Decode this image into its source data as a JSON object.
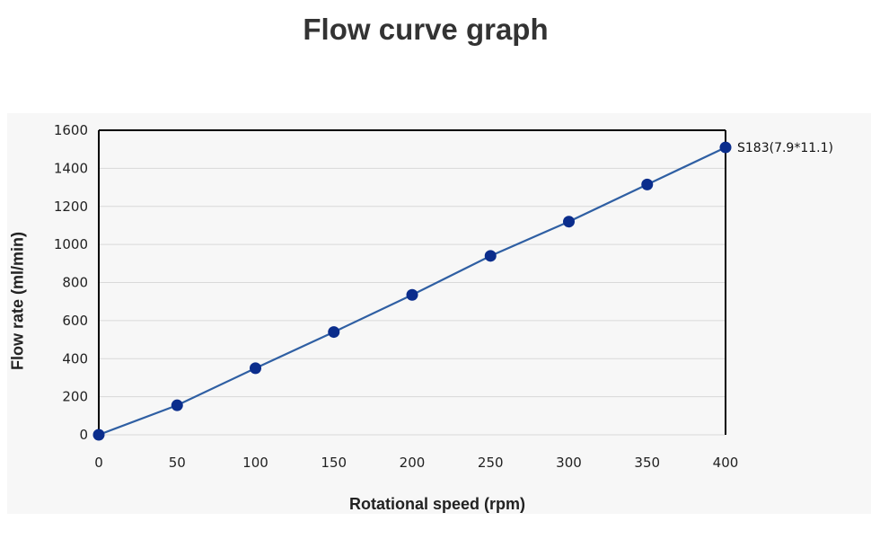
{
  "chart_data": {
    "type": "line",
    "title": "Flow curve graph",
    "xlabel": "Rotational speed (rpm)",
    "ylabel": "Flow rate (ml/min)",
    "xlim": [
      0,
      400
    ],
    "ylim": [
      0,
      1600
    ],
    "xticks": [
      "0",
      "50",
      "100",
      "150",
      "200",
      "250",
      "300",
      "350",
      "400"
    ],
    "yticks": [
      "0",
      "200",
      "400",
      "600",
      "800",
      "1000",
      "1200",
      "1400",
      "1600"
    ],
    "grid": "horizontal",
    "series": [
      {
        "x": [
          0,
          50,
          100,
          150,
          200,
          250,
          300,
          350,
          400
        ],
        "values": [
          0,
          155,
          350,
          540,
          735,
          940,
          1120,
          1315,
          1510
        ],
        "color": "#2f5fa3",
        "marker_color": "#0b2d8c"
      }
    ],
    "annotation": {
      "text": "S183(7.9*11.1)",
      "x": 400,
      "y": 1510
    }
  }
}
